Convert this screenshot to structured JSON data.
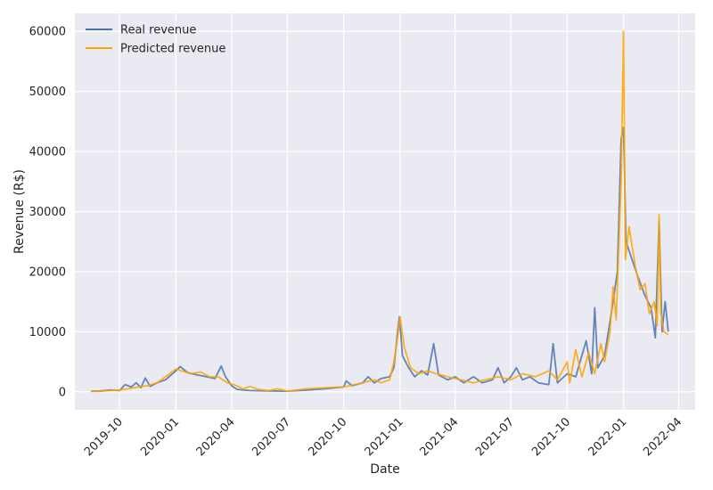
{
  "chart_data": {
    "type": "line",
    "title": "",
    "xlabel": "Date",
    "ylabel": "Revenue (R$)",
    "x_axis_type": "date",
    "xlim": [
      "2019-07-20",
      "2022-04-28"
    ],
    "ylim": [
      -3000,
      63000
    ],
    "grid": true,
    "background": "#eaeaf2",
    "legend_position": "top-left",
    "x_ticks": [
      "2019-10",
      "2020-01",
      "2020-04",
      "2020-07",
      "2020-10",
      "2021-01",
      "2021-04",
      "2021-07",
      "2021-10",
      "2022-01",
      "2022-04"
    ],
    "y_ticks": [
      "0",
      "10000",
      "20000",
      "30000",
      "40000",
      "50000",
      "60000"
    ],
    "series": [
      {
        "name": "Real revenue",
        "color": "#4c72b0",
        "points": [
          [
            "2019-08-15",
            100
          ],
          [
            "2019-09-01",
            150
          ],
          [
            "2019-09-15",
            300
          ],
          [
            "2019-10-01",
            200
          ],
          [
            "2019-10-10",
            1200
          ],
          [
            "2019-10-20",
            800
          ],
          [
            "2019-10-28",
            1500
          ],
          [
            "2019-11-05",
            700
          ],
          [
            "2019-11-12",
            2300
          ],
          [
            "2019-11-20",
            900
          ],
          [
            "2019-12-01",
            1500
          ],
          [
            "2019-12-15",
            2000
          ],
          [
            "2020-01-01",
            3500
          ],
          [
            "2020-01-08",
            4200
          ],
          [
            "2020-01-20",
            3200
          ],
          [
            "2020-02-05",
            2800
          ],
          [
            "2020-02-20",
            2500
          ],
          [
            "2020-03-05",
            2200
          ],
          [
            "2020-03-15",
            4300
          ],
          [
            "2020-03-22",
            2500
          ],
          [
            "2020-04-01",
            1000
          ],
          [
            "2020-04-10",
            400
          ],
          [
            "2020-05-01",
            200
          ],
          [
            "2020-06-01",
            150
          ],
          [
            "2020-07-01",
            100
          ],
          [
            "2020-08-01",
            300
          ],
          [
            "2020-09-01",
            500
          ],
          [
            "2020-10-01",
            800
          ],
          [
            "2020-10-05",
            1800
          ],
          [
            "2020-10-15",
            1000
          ],
          [
            "2020-11-01",
            1500
          ],
          [
            "2020-11-10",
            2500
          ],
          [
            "2020-11-20",
            1500
          ],
          [
            "2020-12-01",
            2200
          ],
          [
            "2020-12-15",
            2500
          ],
          [
            "2020-12-22",
            4000
          ],
          [
            "2020-12-28",
            10000
          ],
          [
            "2020-12-31",
            12500
          ],
          [
            "2021-01-05",
            6000
          ],
          [
            "2021-01-15",
            4000
          ],
          [
            "2021-01-25",
            2500
          ],
          [
            "2021-02-05",
            3500
          ],
          [
            "2021-02-15",
            2800
          ],
          [
            "2021-02-25",
            8000
          ],
          [
            "2021-03-05",
            2800
          ],
          [
            "2021-03-20",
            2000
          ],
          [
            "2021-04-01",
            2500
          ],
          [
            "2021-04-15",
            1500
          ],
          [
            "2021-05-01",
            2500
          ],
          [
            "2021-05-15",
            1500
          ],
          [
            "2021-06-01",
            2000
          ],
          [
            "2021-06-10",
            4000
          ],
          [
            "2021-06-20",
            1500
          ],
          [
            "2021-07-01",
            2500
          ],
          [
            "2021-07-10",
            4000
          ],
          [
            "2021-07-20",
            2000
          ],
          [
            "2021-08-01",
            2500
          ],
          [
            "2021-08-15",
            1500
          ],
          [
            "2021-09-01",
            1200
          ],
          [
            "2021-09-08",
            8000
          ],
          [
            "2021-09-15",
            1500
          ],
          [
            "2021-10-01",
            3000
          ],
          [
            "2021-10-15",
            2500
          ],
          [
            "2021-11-01",
            8500
          ],
          [
            "2021-11-10",
            3000
          ],
          [
            "2021-11-15",
            14000
          ],
          [
            "2021-11-20",
            4000
          ],
          [
            "2021-12-01",
            6000
          ],
          [
            "2021-12-15",
            15000
          ],
          [
            "2021-12-22",
            20000
          ],
          [
            "2021-12-28",
            42000
          ],
          [
            "2022-01-01",
            44000
          ],
          [
            "2022-01-05",
            25000
          ],
          [
            "2022-01-15",
            22000
          ],
          [
            "2022-01-25",
            19000
          ],
          [
            "2022-02-05",
            16000
          ],
          [
            "2022-02-15",
            14000
          ],
          [
            "2022-02-22",
            9000
          ],
          [
            "2022-02-28",
            28500
          ],
          [
            "2022-03-05",
            10000
          ],
          [
            "2022-03-10",
            15000
          ],
          [
            "2022-03-15",
            10000
          ]
        ]
      },
      {
        "name": "Predicted revenue",
        "color": "#ffa500",
        "points": [
          [
            "2019-08-15",
            50
          ],
          [
            "2019-09-01",
            100
          ],
          [
            "2019-09-15",
            200
          ],
          [
            "2019-10-01",
            300
          ],
          [
            "2019-10-15",
            500
          ],
          [
            "2019-11-01",
            800
          ],
          [
            "2019-11-15",
            1000
          ],
          [
            "2019-12-01",
            1500
          ],
          [
            "2019-12-15",
            2500
          ],
          [
            "2020-01-01",
            3800
          ],
          [
            "2020-01-10",
            3500
          ],
          [
            "2020-01-25",
            3000
          ],
          [
            "2020-02-10",
            3300
          ],
          [
            "2020-02-25",
            2500
          ],
          [
            "2020-03-10",
            2500
          ],
          [
            "2020-03-25",
            1500
          ],
          [
            "2020-04-05",
            1200
          ],
          [
            "2020-04-20",
            500
          ],
          [
            "2020-05-01",
            900
          ],
          [
            "2020-05-15",
            400
          ],
          [
            "2020-06-01",
            200
          ],
          [
            "2020-06-15",
            500
          ],
          [
            "2020-07-01",
            100
          ],
          [
            "2020-08-01",
            500
          ],
          [
            "2020-09-01",
            700
          ],
          [
            "2020-10-01",
            800
          ],
          [
            "2020-11-01",
            1500
          ],
          [
            "2020-11-20",
            2000
          ],
          [
            "2020-12-01",
            1500
          ],
          [
            "2020-12-15",
            2000
          ],
          [
            "2020-12-22",
            5000
          ],
          [
            "2020-12-28",
            9000
          ],
          [
            "2021-01-01",
            12500
          ],
          [
            "2021-01-08",
            7500
          ],
          [
            "2021-01-18",
            4000
          ],
          [
            "2021-02-01",
            3000
          ],
          [
            "2021-02-15",
            3500
          ],
          [
            "2021-03-01",
            3000
          ],
          [
            "2021-03-20",
            2500
          ],
          [
            "2021-04-10",
            2000
          ],
          [
            "2021-05-01",
            1500
          ],
          [
            "2021-05-20",
            2000
          ],
          [
            "2021-06-10",
            2500
          ],
          [
            "2021-07-01",
            2000
          ],
          [
            "2021-07-20",
            3000
          ],
          [
            "2021-08-10",
            2500
          ],
          [
            "2021-09-01",
            3500
          ],
          [
            "2021-09-15",
            2000
          ],
          [
            "2021-10-01",
            5000
          ],
          [
            "2021-10-05",
            1500
          ],
          [
            "2021-10-15",
            7000
          ],
          [
            "2021-10-25",
            2500
          ],
          [
            "2021-11-05",
            6500
          ],
          [
            "2021-11-15",
            3000
          ],
          [
            "2021-11-25",
            8000
          ],
          [
            "2021-12-01",
            5000
          ],
          [
            "2021-12-10",
            10000
          ],
          [
            "2021-12-15",
            17500
          ],
          [
            "2021-12-20",
            12000
          ],
          [
            "2021-12-28",
            35000
          ],
          [
            "2022-01-01",
            60000
          ],
          [
            "2022-01-04",
            22000
          ],
          [
            "2022-01-10",
            27500
          ],
          [
            "2022-01-20",
            21000
          ],
          [
            "2022-01-28",
            17000
          ],
          [
            "2022-02-05",
            18000
          ],
          [
            "2022-02-12",
            13000
          ],
          [
            "2022-02-20",
            15000
          ],
          [
            "2022-02-25",
            11000
          ],
          [
            "2022-02-28",
            29500
          ],
          [
            "2022-03-03",
            13000
          ],
          [
            "2022-03-08",
            10000
          ],
          [
            "2022-03-15",
            9500
          ]
        ]
      }
    ]
  }
}
